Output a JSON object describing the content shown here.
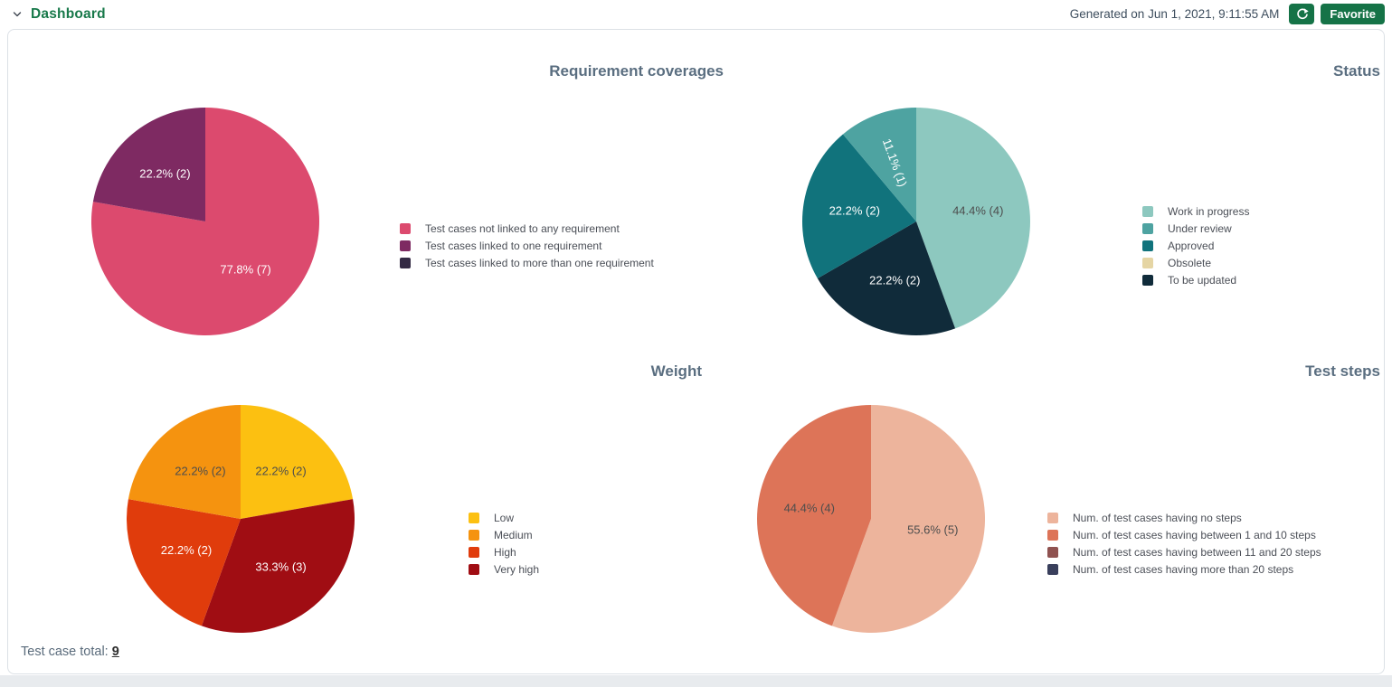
{
  "header": {
    "title": "Dashboard",
    "generated_label": "Generated on Jun 1, 2021, 9:11:55 AM",
    "favorite_label": "Favorite",
    "accent_green": "#157347"
  },
  "footer": {
    "total_label": "Test case total:",
    "total_value": "9"
  },
  "chart_data": [
    {
      "type": "pie",
      "title": "Requirement coverages",
      "legend_position": "right",
      "total": 9,
      "slices": [
        {
          "label": "Test cases not linked to any requirement",
          "pct": "77.8",
          "count": 7,
          "color": "#dc4a6e",
          "label_color": "#ffffff"
        },
        {
          "label": "Test cases linked to one requirement",
          "pct": "22.2",
          "count": 2,
          "color": "#7e2a62",
          "label_color": "#ffffff"
        },
        {
          "label": "Test cases linked to more than one requirement",
          "pct": "0",
          "count": 0,
          "color": "#332a44"
        }
      ]
    },
    {
      "type": "pie",
      "title": "Status",
      "legend_position": "right",
      "total": 9,
      "slices": [
        {
          "label": "Work in progress",
          "pct": "44.4",
          "count": 4,
          "color": "#8dc8bf",
          "label_color": "#4d4d4d"
        },
        {
          "label": "Under review",
          "pct": "11.1",
          "count": 1,
          "color": "#4ea3a1",
          "label_color": "#ffffff",
          "label_rotate": 70
        },
        {
          "label": "Approved",
          "pct": "22.2",
          "count": 2,
          "color": "#11737c",
          "label_color": "#ffffff"
        },
        {
          "label": "Obsolete",
          "pct": "0",
          "count": 0,
          "color": "#e5d5a4"
        },
        {
          "label": "To be updated",
          "pct": "22.2",
          "count": 2,
          "color": "#102b3a",
          "label_color": "#ffffff"
        }
      ]
    },
    {
      "type": "pie",
      "title": "Weight",
      "legend_position": "right",
      "total": 9,
      "slices": [
        {
          "label": "Low",
          "pct": "22.2",
          "count": 2,
          "color": "#fcc011",
          "label_color": "#4d4d4d"
        },
        {
          "label": "Medium",
          "pct": "22.2",
          "count": 2,
          "color": "#f5930f",
          "label_color": "#4d4d4d"
        },
        {
          "label": "High",
          "pct": "22.2",
          "count": 2,
          "color": "#e03c0c",
          "label_color": "#ffffff"
        },
        {
          "label": "Very high",
          "pct": "33.3",
          "count": 3,
          "color": "#a00d13",
          "label_color": "#ffffff"
        }
      ]
    },
    {
      "type": "pie",
      "title": "Test steps",
      "legend_position": "right",
      "total": 9,
      "slices": [
        {
          "label": "Num. of test cases having no steps",
          "pct": "55.6",
          "count": 5,
          "color": "#edb49c",
          "label_color": "#4d4d4d"
        },
        {
          "label": "Num. of test cases having between 1 and 10 steps",
          "pct": "44.4",
          "count": 4,
          "color": "#dd7458",
          "label_color": "#4d4d4d"
        },
        {
          "label": "Num. of test cases having between 11 and 20 steps",
          "pct": "0",
          "count": 0,
          "color": "#8f5250"
        },
        {
          "label": "Num. of test cases having more than 20 steps",
          "pct": "0",
          "count": 0,
          "color": "#393f5c"
        }
      ]
    }
  ]
}
